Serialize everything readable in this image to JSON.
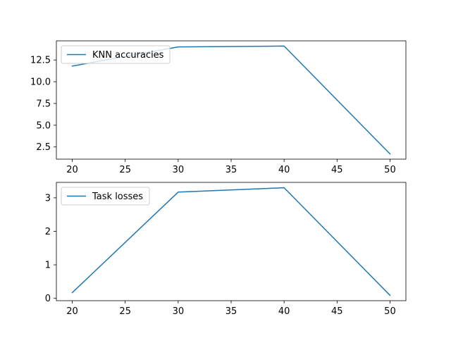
{
  "chart_data": [
    {
      "type": "line",
      "x": [
        20,
        30,
        40,
        50
      ],
      "series": [
        {
          "name": "KNN accuracies",
          "values": [
            11.8,
            14.0,
            14.1,
            1.7
          ],
          "color": "#1f77b4"
        }
      ],
      "xlim": [
        18.5,
        51.5
      ],
      "ylim": [
        1.1,
        14.7
      ],
      "xticks": [
        20,
        25,
        30,
        35,
        40,
        45,
        50
      ],
      "yticks": [
        2.5,
        5.0,
        7.5,
        10.0,
        12.5
      ],
      "ytick_labels": [
        "2.5",
        "5.0",
        "7.5",
        "10.0",
        "12.5"
      ],
      "legend": "upper-left",
      "grid": false
    },
    {
      "type": "line",
      "x": [
        20,
        30,
        40,
        50
      ],
      "series": [
        {
          "name": "Task losses",
          "values": [
            0.17,
            3.17,
            3.3,
            0.09
          ],
          "color": "#1f77b4"
        }
      ],
      "xlim": [
        18.5,
        51.5
      ],
      "ylim": [
        -0.07,
        3.46
      ],
      "xticks": [
        20,
        25,
        30,
        35,
        40,
        45,
        50
      ],
      "yticks": [
        0,
        1,
        2,
        3
      ],
      "ytick_labels": [
        "0",
        "1",
        "2",
        "3"
      ],
      "legend": "upper-left",
      "grid": false
    }
  ]
}
